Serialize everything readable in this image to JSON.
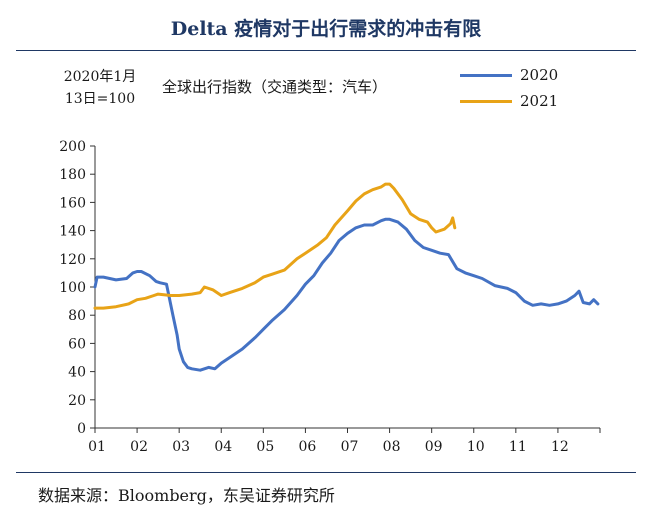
{
  "header": {
    "title": "Delta 疫情对于出行需求的冲击有限",
    "base_note_line1": "2020年1月",
    "base_note_line2": "13日=100",
    "subtitle": "全球出行指数（交通类型：汽车）"
  },
  "footer": {
    "source": "数据来源：Bloomberg，东吴证券研究所"
  },
  "chart_data": {
    "type": "line",
    "title": "全球出行指数（交通类型：汽车）",
    "xlabel": "",
    "ylabel": "",
    "x_unit": "month",
    "xlim": [
      1,
      13
    ],
    "ylim": [
      0,
      200
    ],
    "yticks": [
      0,
      20,
      40,
      60,
      80,
      100,
      120,
      140,
      160,
      180,
      200
    ],
    "xtick_labels": [
      "01",
      "02",
      "03",
      "04",
      "05",
      "06",
      "07",
      "08",
      "09",
      "10",
      "11",
      "12"
    ],
    "grid": false,
    "legend_position": "top-right",
    "series": [
      {
        "name": "2020",
        "color": "#4472c4",
        "x": [
          1.0,
          1.05,
          1.2,
          1.5,
          1.75,
          1.9,
          2.0,
          2.1,
          2.3,
          2.45,
          2.55,
          2.7,
          2.85,
          2.95,
          3.0,
          3.1,
          3.2,
          3.3,
          3.5,
          3.7,
          3.85,
          4.0,
          4.2,
          4.5,
          4.8,
          5.0,
          5.2,
          5.5,
          5.8,
          6.0,
          6.2,
          6.4,
          6.6,
          6.8,
          7.0,
          7.2,
          7.4,
          7.6,
          7.8,
          7.9,
          8.0,
          8.2,
          8.4,
          8.6,
          8.8,
          9.0,
          9.2,
          9.4,
          9.6,
          9.8,
          10.0,
          10.2,
          10.5,
          10.8,
          11.0,
          11.2,
          11.4,
          11.6,
          11.8,
          12.0,
          12.2,
          12.4,
          12.5,
          12.6,
          12.75,
          12.85,
          12.95
        ],
        "y": [
          100,
          107,
          107,
          105,
          106,
          110,
          111,
          111,
          108,
          104,
          103,
          102,
          80,
          66,
          56,
          47,
          43,
          42,
          41,
          43,
          42,
          46,
          50,
          56,
          64,
          70,
          76,
          84,
          94,
          102,
          108,
          117,
          124,
          133,
          138,
          142,
          144,
          144,
          147,
          148,
          148,
          146,
          141,
          133,
          128,
          126,
          124,
          123,
          113,
          110,
          108,
          106,
          101,
          99,
          96,
          90,
          87,
          88,
          87,
          88,
          90,
          94,
          97,
          89,
          88,
          91,
          88
        ]
      },
      {
        "name": "2021",
        "color": "#e8a317",
        "x": [
          1.0,
          1.2,
          1.5,
          1.8,
          2.0,
          2.2,
          2.4,
          2.5,
          2.8,
          3.0,
          3.3,
          3.5,
          3.6,
          3.8,
          4.0,
          4.2,
          4.5,
          4.8,
          5.0,
          5.2,
          5.5,
          5.8,
          6.0,
          6.3,
          6.5,
          6.7,
          7.0,
          7.2,
          7.4,
          7.6,
          7.8,
          7.9,
          8.0,
          8.1,
          8.3,
          8.5,
          8.7,
          8.9,
          9.0,
          9.1,
          9.3,
          9.45,
          9.5,
          9.55
        ],
        "y": [
          85,
          85,
          86,
          88,
          91,
          92,
          94,
          95,
          94,
          94,
          95,
          96,
          100,
          98,
          94,
          96,
          99,
          103,
          107,
          109,
          112,
          120,
          124,
          130,
          135,
          144,
          154,
          161,
          166,
          169,
          171,
          173,
          173,
          170,
          162,
          152,
          148,
          146,
          142,
          139,
          141,
          145,
          149,
          142
        ]
      }
    ]
  }
}
